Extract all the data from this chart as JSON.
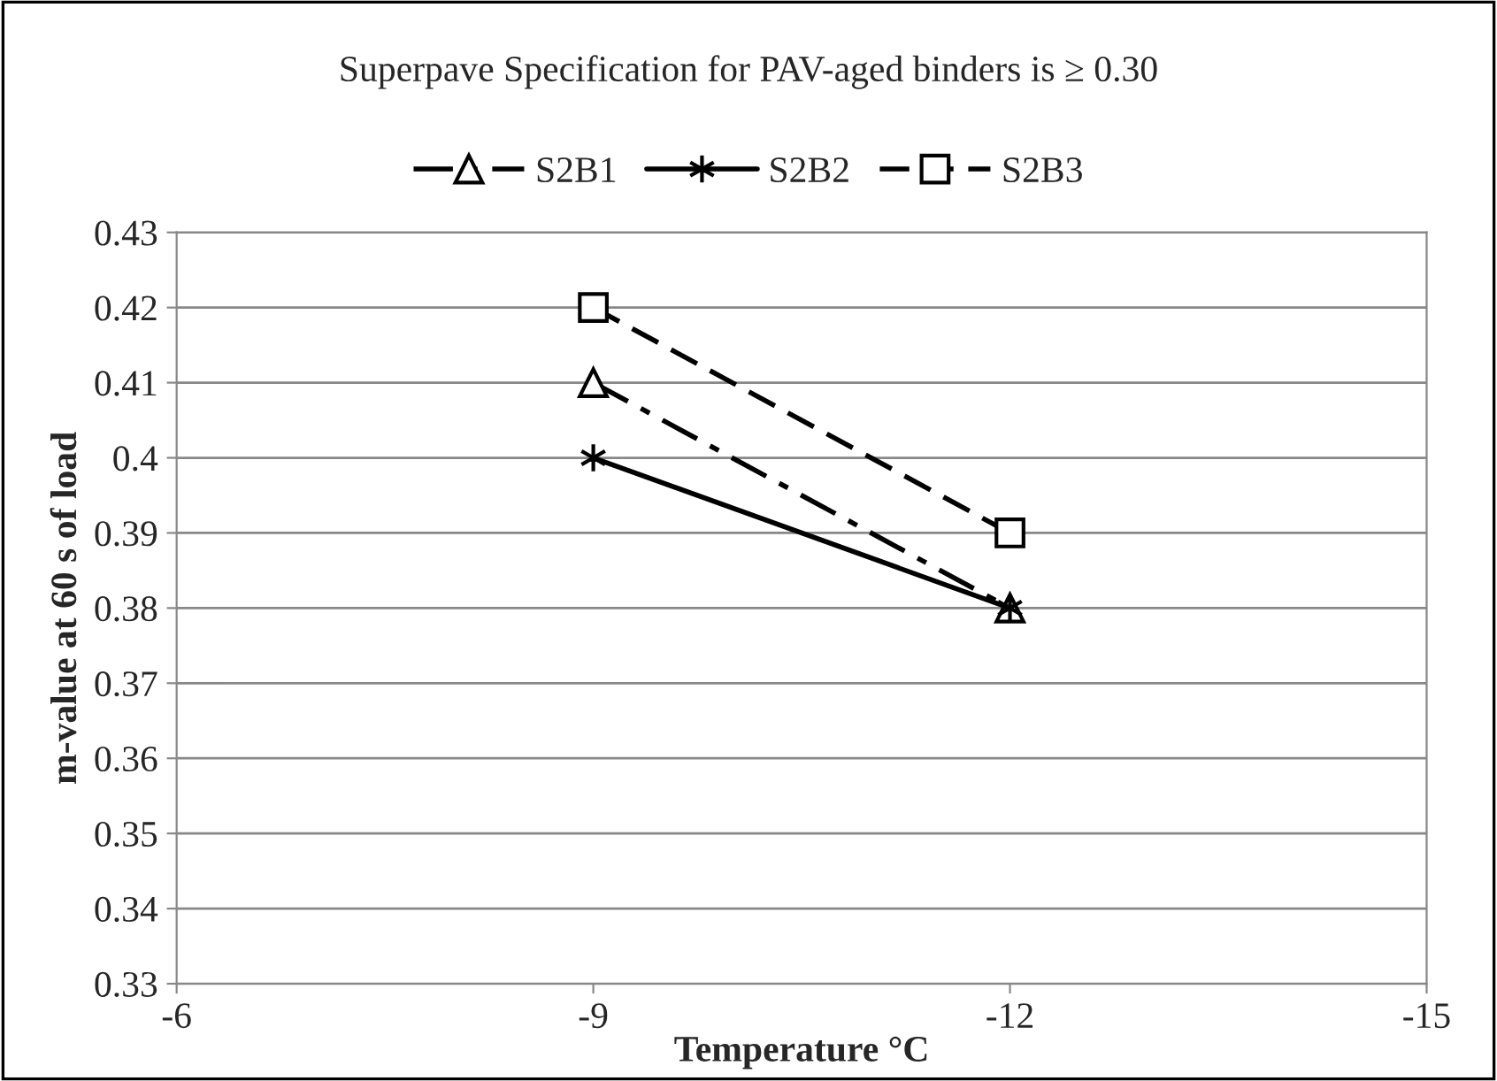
{
  "chart_data": {
    "type": "line",
    "title": "Superpave Specification for PAV-aged binders is ≥ 0.30",
    "xlabel": "Temperature °C",
    "ylabel": "m-value at 60 s of load",
    "x": [
      -9,
      -12
    ],
    "series": [
      {
        "name": "S2B1",
        "color": "#000000",
        "values": [
          0.41,
          0.38
        ],
        "marker": "triangle",
        "line_style": "dashdot"
      },
      {
        "name": "S2B2",
        "color": "#000000",
        "values": [
          0.4,
          0.38
        ],
        "marker": "cross",
        "line_style": "solid"
      },
      {
        "name": "S2B3",
        "color": "#000000",
        "values": [
          0.42,
          0.39
        ],
        "marker": "square",
        "line_style": "dashed"
      }
    ],
    "xlim": [
      -6,
      -15
    ],
    "xticks": [
      -6,
      -9,
      -12,
      -15
    ],
    "ylim": [
      0.33,
      0.43
    ],
    "yticks": [
      0.33,
      0.34,
      0.35,
      0.36,
      0.37,
      0.38,
      0.39,
      0.4,
      0.41,
      0.42,
      0.43
    ],
    "grid": "y",
    "legend": "top"
  }
}
